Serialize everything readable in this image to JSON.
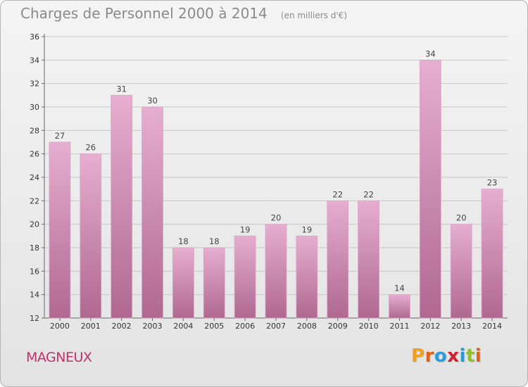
{
  "header": {
    "title": "Charges de Personnel 2000 à 2014",
    "unit": "(en milliers d'€)"
  },
  "footer": {
    "commune": "MAGNEUX",
    "logo_letters": [
      "P",
      "r",
      "o",
      "x",
      "i",
      "t",
      "i"
    ],
    "logo_colors": [
      "#f0a020",
      "#e06018",
      "#2a9ad8",
      "#d02030",
      "#2a9ad8",
      "#90c030",
      "#e06018"
    ]
  },
  "colors": {
    "bar": "#c47aa6",
    "bar_light": "#e6aed0",
    "bar_dark": "#b06890",
    "title": "#8a8a8a",
    "commune": "#c0306a"
  },
  "chart_data": {
    "type": "bar",
    "title": "Charges de Personnel 2000 à 2014",
    "subtitle": "(en milliers d'€)",
    "categories": [
      "2000",
      "2001",
      "2002",
      "2003",
      "2004",
      "2005",
      "2006",
      "2007",
      "2008",
      "2009",
      "2010",
      "2011",
      "2012",
      "2013",
      "2014"
    ],
    "values": [
      27,
      26,
      31,
      30,
      18,
      18,
      19,
      20,
      19,
      22,
      22,
      14,
      34,
      20,
      23
    ],
    "ylim": [
      12,
      36
    ],
    "yticks": [
      12,
      14,
      16,
      18,
      20,
      22,
      24,
      26,
      28,
      30,
      32,
      34,
      36
    ],
    "grid": true,
    "xlabel": "",
    "ylabel": ""
  }
}
